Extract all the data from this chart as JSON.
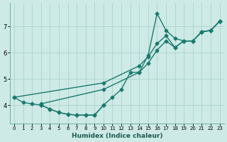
{
  "title": "",
  "xlabel": "Humidex (Indice chaleur)",
  "ylabel": "",
  "bg_color": "#ceeae6",
  "line_color": "#1a7a6e",
  "grid_color": "#aad4ce",
  "xlim": [
    -0.5,
    23.5
  ],
  "ylim": [
    3.3,
    7.9
  ],
  "xticks": [
    0,
    1,
    2,
    3,
    4,
    5,
    6,
    7,
    8,
    9,
    10,
    11,
    12,
    13,
    14,
    15,
    16,
    17,
    18,
    19,
    20,
    21,
    22,
    23
  ],
  "yticks": [
    4,
    5,
    6,
    7
  ],
  "line_spike_x": [
    0,
    1,
    2,
    3,
    4,
    5,
    6,
    7,
    8,
    9,
    10,
    11,
    12,
    13,
    14,
    15,
    16,
    17,
    18,
    19,
    20,
    21,
    22,
    23
  ],
  "line_spike_y": [
    4.3,
    4.1,
    4.05,
    4.0,
    3.85,
    3.72,
    3.65,
    3.62,
    3.62,
    3.62,
    4.0,
    4.3,
    4.6,
    5.25,
    5.25,
    5.9,
    7.5,
    6.85,
    6.55,
    6.45,
    6.45,
    6.8,
    6.85,
    7.2
  ],
  "line_straight1_x": [
    0,
    10,
    14,
    15,
    16,
    17,
    18,
    19,
    20,
    21,
    22,
    23
  ],
  "line_straight1_y": [
    4.3,
    4.85,
    5.5,
    5.85,
    6.35,
    6.65,
    6.2,
    6.45,
    6.45,
    6.8,
    6.85,
    7.2
  ],
  "line_straight2_x": [
    3,
    10,
    14,
    15,
    16,
    17,
    18,
    19,
    20,
    21,
    22,
    23
  ],
  "line_straight2_y": [
    4.05,
    4.6,
    5.25,
    5.6,
    6.1,
    6.45,
    6.2,
    6.45,
    6.45,
    6.8,
    6.85,
    7.2
  ],
  "line_low_x": [
    3,
    4,
    5,
    6,
    7,
    8,
    9,
    10
  ],
  "line_low_y": [
    4.0,
    3.85,
    3.72,
    3.65,
    3.62,
    3.62,
    3.62,
    4.0
  ]
}
